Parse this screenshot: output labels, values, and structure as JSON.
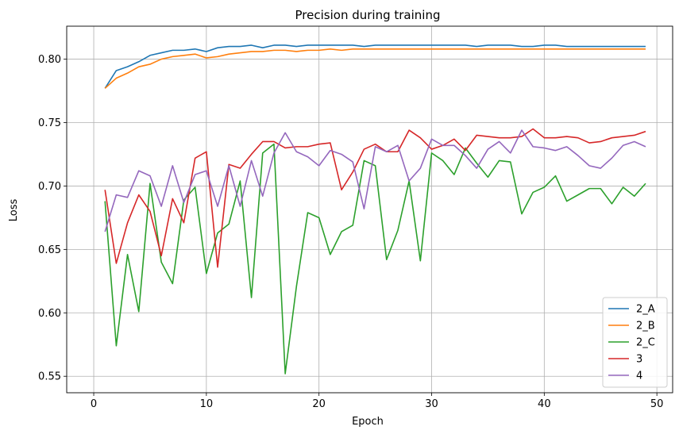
{
  "chart_data": {
    "type": "line",
    "title": "Precision during training",
    "xlabel": "Epoch",
    "ylabel": "Loss",
    "xlim": [
      -2.4,
      51.4
    ],
    "ylim": [
      0.537,
      0.826
    ],
    "xticks": [
      0,
      10,
      20,
      30,
      40,
      50
    ],
    "yticks": [
      0.55,
      0.6,
      0.65,
      0.7,
      0.75,
      0.8
    ],
    "ytick_labels": [
      "0.55",
      "0.60",
      "0.65",
      "0.70",
      "0.75",
      "0.80"
    ],
    "grid": true,
    "legend_position": "lower-right",
    "x": [
      1,
      2,
      3,
      4,
      5,
      6,
      7,
      8,
      9,
      10,
      11,
      12,
      13,
      14,
      15,
      16,
      17,
      18,
      19,
      20,
      21,
      22,
      23,
      24,
      25,
      26,
      27,
      28,
      29,
      30,
      31,
      32,
      33,
      34,
      35,
      36,
      37,
      38,
      39,
      40,
      41,
      42,
      43,
      44,
      45,
      46,
      47,
      48,
      49
    ],
    "series": [
      {
        "name": "2_A",
        "color": "#1f77b4",
        "values": [
          0.777,
          0.791,
          0.794,
          0.798,
          0.803,
          0.805,
          0.807,
          0.807,
          0.808,
          0.806,
          0.809,
          0.81,
          0.81,
          0.811,
          0.809,
          0.811,
          0.811,
          0.81,
          0.811,
          0.811,
          0.811,
          0.811,
          0.811,
          0.81,
          0.811,
          0.811,
          0.811,
          0.811,
          0.811,
          0.811,
          0.811,
          0.811,
          0.811,
          0.81,
          0.811,
          0.811,
          0.811,
          0.81,
          0.81,
          0.811,
          0.811,
          0.81,
          0.81,
          0.81,
          0.81,
          0.81,
          0.81,
          0.81,
          0.81
        ]
      },
      {
        "name": "2_B",
        "color": "#ff7f0e",
        "values": [
          0.777,
          0.785,
          0.789,
          0.794,
          0.796,
          0.8,
          0.802,
          0.803,
          0.804,
          0.801,
          0.802,
          0.804,
          0.805,
          0.806,
          0.806,
          0.807,
          0.807,
          0.806,
          0.807,
          0.807,
          0.808,
          0.807,
          0.808,
          0.808,
          0.808,
          0.808,
          0.808,
          0.808,
          0.808,
          0.808,
          0.808,
          0.808,
          0.808,
          0.808,
          0.808,
          0.808,
          0.808,
          0.808,
          0.808,
          0.808,
          0.808,
          0.808,
          0.808,
          0.808,
          0.808,
          0.808,
          0.808,
          0.808,
          0.808
        ]
      },
      {
        "name": "2_C",
        "color": "#2ca02c",
        "values": [
          0.688,
          0.574,
          0.646,
          0.601,
          0.702,
          0.64,
          0.623,
          0.689,
          0.699,
          0.631,
          0.663,
          0.67,
          0.704,
          0.612,
          0.726,
          0.733,
          0.552,
          0.621,
          0.679,
          0.675,
          0.646,
          0.664,
          0.669,
          0.72,
          0.716,
          0.642,
          0.665,
          0.704,
          0.641,
          0.726,
          0.72,
          0.709,
          0.73,
          0.718,
          0.707,
          0.72,
          0.719,
          0.678,
          0.695,
          0.699,
          0.708,
          0.688,
          0.693,
          0.698,
          0.698,
          0.686,
          0.699,
          0.692,
          0.702
        ]
      },
      {
        "name": "3",
        "color": "#d62728",
        "values": [
          0.697,
          0.639,
          0.671,
          0.693,
          0.68,
          0.645,
          0.69,
          0.671,
          0.722,
          0.727,
          0.636,
          0.717,
          0.714,
          0.725,
          0.735,
          0.735,
          0.73,
          0.731,
          0.731,
          0.733,
          0.734,
          0.697,
          0.711,
          0.729,
          0.733,
          0.727,
          0.727,
          0.744,
          0.738,
          0.729,
          0.732,
          0.737,
          0.728,
          0.74,
          0.739,
          0.738,
          0.738,
          0.739,
          0.745,
          0.738,
          0.738,
          0.739,
          0.738,
          0.734,
          0.735,
          0.738,
          0.739,
          0.74,
          0.743
        ]
      },
      {
        "name": "4",
        "color": "#9467bd",
        "values": [
          0.664,
          0.693,
          0.691,
          0.712,
          0.708,
          0.684,
          0.716,
          0.687,
          0.709,
          0.712,
          0.684,
          0.716,
          0.684,
          0.72,
          0.692,
          0.726,
          0.742,
          0.727,
          0.723,
          0.716,
          0.728,
          0.725,
          0.719,
          0.682,
          0.731,
          0.727,
          0.732,
          0.704,
          0.714,
          0.737,
          0.732,
          0.732,
          0.724,
          0.714,
          0.729,
          0.735,
          0.726,
          0.744,
          0.731,
          0.73,
          0.728,
          0.731,
          0.724,
          0.716,
          0.714,
          0.722,
          0.732,
          0.735,
          0.731
        ]
      }
    ]
  }
}
